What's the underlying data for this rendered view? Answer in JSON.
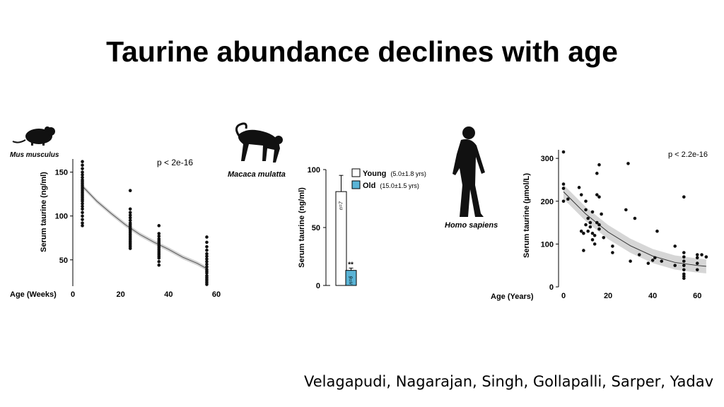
{
  "slide": {
    "title": "Taurine abundance declines with age",
    "authors": "Velagapudi, Nagarajan, Singh, Gollapalli, Sarper, Yadav"
  },
  "colors": {
    "old": "#5ab4d6",
    "young": "#ffffff",
    "band": "#c8c8c8",
    "point": "#111111"
  },
  "chart_data": [
    {
      "type": "scatter",
      "species": "Mus musculus",
      "p_value": "p < 2e-16",
      "xlabel": "Age (Weeks)",
      "ylabel": "Serum taurine (ng/ml)",
      "xlim": [
        0,
        60
      ],
      "ylim": [
        20,
        165
      ],
      "xticks": [
        "0",
        "20",
        "40",
        "60"
      ],
      "yticks": [
        "50",
        "100",
        "150"
      ],
      "groups": [
        {
          "x": 4,
          "values": [
            162,
            158,
            154,
            150,
            147,
            144,
            141,
            139,
            137,
            135,
            133,
            131,
            129,
            127,
            125,
            123,
            121,
            119,
            117,
            114,
            111,
            108,
            104,
            100,
            96,
            92,
            89
          ]
        },
        {
          "x": 24,
          "values": [
            129,
            108,
            104,
            101,
            98,
            95,
            92,
            90,
            88,
            86,
            85,
            83,
            81,
            79,
            77,
            75,
            73,
            71,
            69,
            67,
            65,
            63
          ]
        },
        {
          "x": 36,
          "values": [
            89,
            80,
            77,
            74,
            72,
            70,
            68,
            66,
            64,
            62,
            60,
            58,
            56,
            54,
            52,
            48,
            44
          ]
        },
        {
          "x": 56,
          "values": [
            76,
            70,
            65,
            61,
            57,
            54,
            51,
            48,
            45,
            42,
            39,
            37,
            35,
            32,
            30,
            28,
            26,
            24,
            22
          ]
        }
      ],
      "fit": [
        [
          4,
          134
        ],
        [
          10,
          117
        ],
        [
          16,
          103
        ],
        [
          22,
          90
        ],
        [
          28,
          79
        ],
        [
          34,
          70
        ],
        [
          40,
          62
        ],
        [
          46,
          53
        ],
        [
          52,
          46
        ],
        [
          56,
          40
        ]
      ]
    },
    {
      "type": "bar",
      "species": "Macaca mulatta",
      "ylabel": "Serum taurine (ng/ml)",
      "ylim": [
        0,
        100
      ],
      "yticks": [
        "0",
        "50",
        "100"
      ],
      "series": [
        {
          "name": "Young",
          "detail": "(5.0±1.8 yrs)",
          "value": 81,
          "error": 14,
          "n_label": "n=7"
        },
        {
          "name": "Old",
          "detail": "(15.0±1.5 yrs)",
          "value": 13,
          "error": 2,
          "n_label": "n=6"
        }
      ],
      "significance": "**"
    },
    {
      "type": "scatter",
      "species": "Homo sapiens",
      "p_value": "p < 2.2e-16",
      "xlabel": "Age (Years)",
      "ylabel": "Serum taurine (µmol/L)",
      "xlim": [
        0,
        65
      ],
      "ylim": [
        0,
        320
      ],
      "xticks": [
        "0",
        "20",
        "40",
        "60"
      ],
      "yticks": [
        "0",
        "100",
        "200",
        "300"
      ],
      "points": [
        [
          0,
          315
        ],
        [
          0,
          240
        ],
        [
          0,
          230
        ],
        [
          0,
          200
        ],
        [
          2,
          205
        ],
        [
          7,
          232
        ],
        [
          8,
          215
        ],
        [
          8,
          130
        ],
        [
          9,
          125
        ],
        [
          9,
          85
        ],
        [
          10,
          200
        ],
        [
          10,
          180
        ],
        [
          10,
          145
        ],
        [
          11,
          130
        ],
        [
          11,
          160
        ],
        [
          12,
          140
        ],
        [
          12,
          150
        ],
        [
          13,
          110
        ],
        [
          13,
          125
        ],
        [
          13,
          175
        ],
        [
          14,
          100
        ],
        [
          14,
          120
        ],
        [
          15,
          265
        ],
        [
          15,
          215
        ],
        [
          15,
          150
        ],
        [
          16,
          285
        ],
        [
          16,
          210
        ],
        [
          16,
          145
        ],
        [
          16,
          135
        ],
        [
          17,
          170
        ],
        [
          18,
          115
        ],
        [
          22,
          95
        ],
        [
          22,
          80
        ],
        [
          28,
          180
        ],
        [
          29,
          288
        ],
        [
          30,
          60
        ],
        [
          32,
          160
        ],
        [
          34,
          75
        ],
        [
          38,
          55
        ],
        [
          40,
          62
        ],
        [
          41,
          68
        ],
        [
          42,
          130
        ],
        [
          44,
          60
        ],
        [
          50,
          50
        ],
        [
          50,
          95
        ],
        [
          54,
          210
        ],
        [
          54,
          80
        ],
        [
          54,
          70
        ],
        [
          54,
          60
        ],
        [
          54,
          50
        ],
        [
          54,
          40
        ],
        [
          54,
          30
        ],
        [
          54,
          25
        ],
        [
          54,
          20
        ],
        [
          60,
          75
        ],
        [
          60,
          68
        ],
        [
          60,
          55
        ],
        [
          60,
          40
        ],
        [
          62,
          75
        ],
        [
          64,
          70
        ]
      ],
      "fit": [
        [
          0,
          222
        ],
        [
          10,
          170
        ],
        [
          20,
          128
        ],
        [
          30,
          96
        ],
        [
          40,
          72
        ],
        [
          50,
          57
        ],
        [
          60,
          50
        ],
        [
          64,
          48
        ]
      ]
    }
  ]
}
